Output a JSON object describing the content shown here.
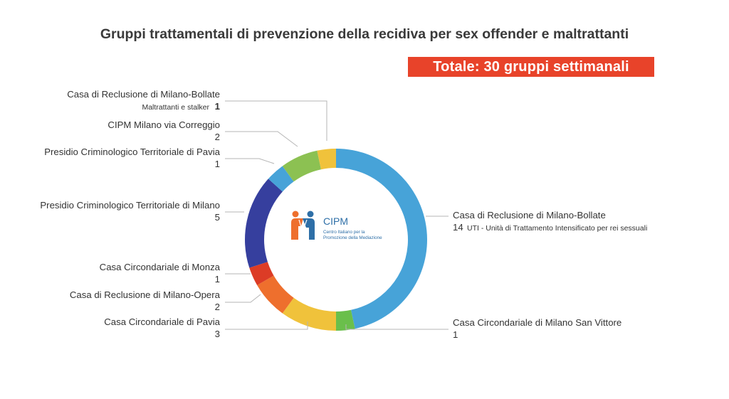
{
  "title": "Gruppi trattamentali di prevenzione della recidiva per sex offender e maltrattanti",
  "total_label": "Totale: 30 gruppi settimanali",
  "colors": {
    "badge_bg": "#e8432a",
    "leader_line": "#b5b5b5"
  },
  "logo": {
    "name": "CIPM",
    "subtitle_line1": "Centro Italiano per la",
    "subtitle_line2": "Promozione della Mediazione",
    "icon": "two-people-icon"
  },
  "chart_data": {
    "type": "pie",
    "donut": true,
    "total": 30,
    "slices": [
      {
        "label": "Casa di Reclusione di Milano-Bollate",
        "value": 14,
        "value_text": "14",
        "note": "UTI - Unità di Trattamento Intensificato per rei sessuali",
        "color": "#47a3d8"
      },
      {
        "label": "Casa Circondariale di Milano San Vittore",
        "value": 1,
        "value_text": "1",
        "note": "",
        "color": "#6abf4b"
      },
      {
        "label": "Casa Circondariale di Pavia",
        "value": 3,
        "value_text": "3",
        "note": "",
        "color": "#f0c23b"
      },
      {
        "label": "Casa di Reclusione di Milano-Opera",
        "value": 2,
        "value_text": "2",
        "note": "",
        "color": "#ee6f2d"
      },
      {
        "label": "Casa Circondariale di Monza",
        "value": 1,
        "value_text": "1",
        "note": "",
        "color": "#dc3c26"
      },
      {
        "label": "Presidio Criminologico Territoriale di Milano",
        "value": 5,
        "value_text": "5",
        "note": "",
        "color": "#363f9e"
      },
      {
        "label": "Presidio Criminologico Territoriale di Pavia",
        "value": 1,
        "value_text": "1",
        "note": "",
        "color": "#47a3d8"
      },
      {
        "label": "CIPM Milano via Correggio",
        "value": 2,
        "value_text": "2",
        "note": "",
        "color": "#8cc152"
      },
      {
        "label": "Casa di Reclusione di Milano-Bollate",
        "value": 1,
        "value_text": "1",
        "note": "Maltrattanti e stalker",
        "color": "#f0c23b"
      }
    ]
  }
}
